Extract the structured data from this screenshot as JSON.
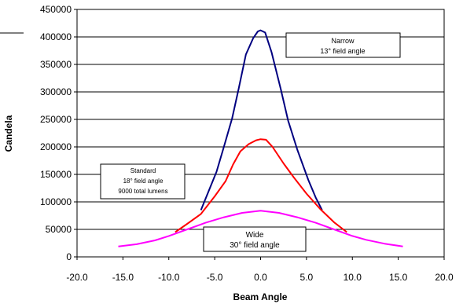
{
  "chart_data": {
    "type": "line",
    "xlabel": "Beam Angle",
    "ylabel": "Candela",
    "xlim": [
      -20,
      20
    ],
    "ylim": [
      0,
      450000
    ],
    "x_ticks": [
      "-20.0",
      "-15.0",
      "-10.0",
      "-5.0",
      "0.0",
      "5.0",
      "10.0",
      "15.0",
      "20.0"
    ],
    "y_ticks": [
      "0",
      "50000",
      "100000",
      "150000",
      "200000",
      "250000",
      "300000",
      "350000",
      "400000",
      "450000"
    ],
    "grid": "horizontal",
    "series": [
      {
        "color": "#000080",
        "points": [
          [
            -6.5,
            85000
          ],
          [
            -5.7,
            118000
          ],
          [
            -4.8,
            155000
          ],
          [
            -4.0,
            200000
          ],
          [
            -3.1,
            252000
          ],
          [
            -2.4,
            305000
          ],
          [
            -1.6,
            368000
          ],
          [
            -0.8,
            398000
          ],
          [
            -0.3,
            410000
          ],
          [
            0.0,
            412000
          ],
          [
            0.5,
            408000
          ],
          [
            1.2,
            372000
          ],
          [
            2.2,
            305000
          ],
          [
            3.0,
            248000
          ],
          [
            4.0,
            195000
          ],
          [
            5.2,
            140000
          ],
          [
            6.0,
            108000
          ],
          [
            6.7,
            85000
          ]
        ]
      },
      {
        "color": "#ff0000",
        "points": [
          [
            -9.3,
            45000
          ],
          [
            -8.0,
            60000
          ],
          [
            -6.5,
            78000
          ],
          [
            -5.0,
            110000
          ],
          [
            -3.8,
            138000
          ],
          [
            -3.0,
            168000
          ],
          [
            -2.2,
            192000
          ],
          [
            -1.3,
            205000
          ],
          [
            -0.5,
            212000
          ],
          [
            0.0,
            214000
          ],
          [
            0.6,
            213000
          ],
          [
            1.3,
            200000
          ],
          [
            2.5,
            170000
          ],
          [
            3.6,
            145000
          ],
          [
            5.0,
            115000
          ],
          [
            6.5,
            87000
          ],
          [
            8.0,
            63000
          ],
          [
            9.4,
            45000
          ]
        ]
      },
      {
        "color": "#ff00ff",
        "points": [
          [
            -15.5,
            19000
          ],
          [
            -13.5,
            23000
          ],
          [
            -11.5,
            30000
          ],
          [
            -10.0,
            38000
          ],
          [
            -8.0,
            50000
          ],
          [
            -6.0,
            62000
          ],
          [
            -4.0,
            72000
          ],
          [
            -2.0,
            80000
          ],
          [
            0.0,
            84000
          ],
          [
            2.0,
            80000
          ],
          [
            4.0,
            72000
          ],
          [
            6.0,
            62000
          ],
          [
            8.0,
            50000
          ],
          [
            10.0,
            38000
          ],
          [
            11.5,
            31000
          ],
          [
            13.5,
            24000
          ],
          [
            15.5,
            19000
          ]
        ]
      }
    ],
    "annotations": {
      "narrow": {
        "line1": "Narrow",
        "line2": "13° field angle"
      },
      "standard": {
        "line1": "Standard",
        "line2": "18° field angle",
        "line3": "9000 total lumens"
      },
      "wide": {
        "line1": "Wide",
        "line2": "30° field angle"
      }
    }
  }
}
